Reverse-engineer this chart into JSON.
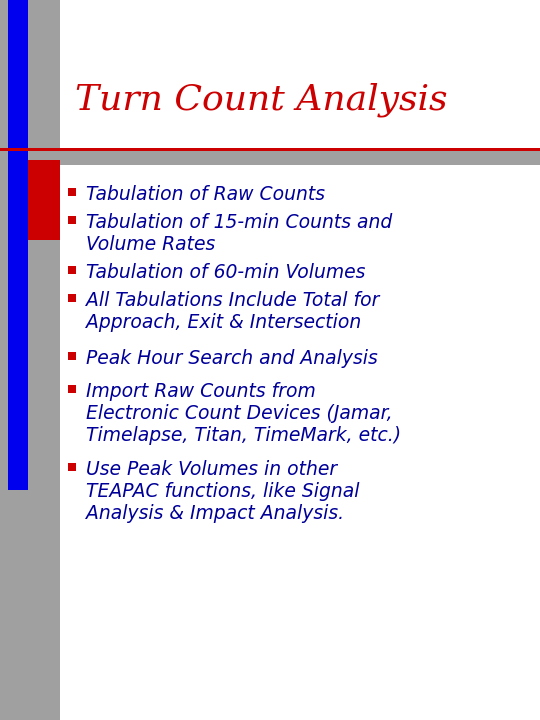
{
  "title": "Turn Count Analysis",
  "title_color": "#cc0000",
  "title_fontsize": 26,
  "bg_color": "#ffffff",
  "left_bar_gray_color": "#a0a0a0",
  "left_bar_blue_color": "#0000ee",
  "left_bar_red_color": "#cc0000",
  "divider_color": "#cc0000",
  "bullet_color": "#cc0000",
  "text_color": "#000099",
  "bullet_items": [
    "Tabulation of Raw Counts",
    "Tabulation of 15-min Counts and\nVolume Rates",
    "Tabulation of 60-min Volumes",
    "All Tabulations Include Total for\nApproach, Exit & Intersection",
    "Peak Hour Search and Analysis",
    "Import Raw Counts from\nElectronic Count Devices (Jamar,\nTimelapse, Titan, TimeMark, etc.)",
    "Use Peak Volumes in other\nTEAPAC functions, like Signal\nAnalysis & Impact Analysis."
  ],
  "text_fontsize": 13.5,
  "fig_width": 5.4,
  "fig_height": 7.2,
  "dpi": 100
}
